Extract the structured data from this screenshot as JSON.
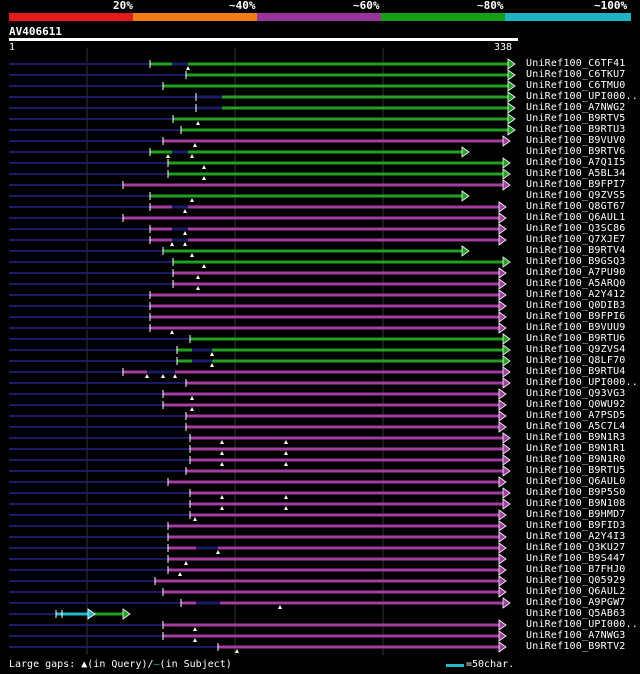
{
  "query": {
    "id": "AV406611",
    "start_label": "1",
    "end_label": "338"
  },
  "scale": {
    "labels": [
      "20%",
      "~40%",
      "~60%",
      "~80%",
      "~100%"
    ],
    "colors": [
      "#e41a1c",
      "#f07d1a",
      "#993399",
      "#169e16",
      "#1eb4c4"
    ]
  },
  "colors": {
    "green": "#22a022",
    "magenta": "#a43ca4",
    "cyan": "#22b8c8",
    "navy": "#1a1a66",
    "grid": "#333333"
  },
  "hits": [
    {
      "label": "UniRef100_C6TF41",
      "color": "green",
      "start": 150,
      "end": 514,
      "marks": [
        188
      ],
      "gap": [
        172,
        188
      ]
    },
    {
      "label": "UniRef100_C6TKU7",
      "color": "green",
      "start": 186,
      "end": 514,
      "marks": [],
      "gap": null
    },
    {
      "label": "UniRef100_C6TMU0",
      "color": "green",
      "start": 163,
      "end": 514,
      "marks": [],
      "gap": null
    },
    {
      "label": "UniRef100_UPI000..",
      "color": "green",
      "start": 196,
      "end": 514,
      "marks": [],
      "gap": [
        196,
        222
      ]
    },
    {
      "label": "UniRef100_A7NWG2",
      "color": "green",
      "start": 196,
      "end": 514,
      "marks": [],
      "gap": [
        196,
        222
      ]
    },
    {
      "label": "UniRef100_B9RTV5",
      "color": "green",
      "start": 173,
      "end": 514,
      "marks": [
        198
      ],
      "gap": null
    },
    {
      "label": "UniRef100_B9RTU3",
      "color": "green",
      "start": 181,
      "end": 514,
      "marks": [],
      "gap": null
    },
    {
      "label": "UniRef100_B9VUV0",
      "color": "magenta",
      "start": 163,
      "end": 509,
      "marks": [
        195
      ],
      "gap": null
    },
    {
      "label": "UniRef100_B9RTV6",
      "color": "green",
      "start": 150,
      "end": 468,
      "marks": [
        168,
        192
      ],
      "gap": [
        172,
        188
      ]
    },
    {
      "label": "UniRef100_A7Q1I5",
      "color": "green",
      "start": 168,
      "end": 509,
      "marks": [
        204
      ],
      "gap": null
    },
    {
      "label": "UniRef100_A5BL34",
      "color": "green",
      "start": 168,
      "end": 509,
      "marks": [
        204
      ],
      "gap": null
    },
    {
      "label": "UniRef100_B9FPI7",
      "color": "magenta",
      "start": 123,
      "end": 509,
      "marks": [],
      "gap": null
    },
    {
      "label": "UniRef100_Q9ZVS5",
      "color": "green",
      "start": 150,
      "end": 468,
      "marks": [
        192
      ],
      "gap": null
    },
    {
      "label": "UniRef100_Q8GT67",
      "color": "magenta",
      "start": 150,
      "end": 505,
      "marks": [
        185
      ],
      "gap": [
        172,
        188
      ]
    },
    {
      "label": "UniRef100_Q6AUL1",
      "color": "magenta",
      "start": 123,
      "end": 505,
      "marks": [],
      "gap": null
    },
    {
      "label": "UniRef100_Q3SC86",
      "color": "magenta",
      "start": 150,
      "end": 505,
      "marks": [
        185
      ],
      "gap": [
        172,
        188
      ]
    },
    {
      "label": "UniRef100_Q7XJE7",
      "color": "magenta",
      "start": 150,
      "end": 505,
      "marks": [
        172,
        185
      ],
      "gap": [
        172,
        188
      ]
    },
    {
      "label": "UniRef100_B9RTV4",
      "color": "green",
      "start": 163,
      "end": 468,
      "marks": [
        192
      ],
      "gap": null
    },
    {
      "label": "UniRef100_B9GSQ3",
      "color": "green",
      "start": 173,
      "end": 509,
      "marks": [
        204
      ],
      "gap": null
    },
    {
      "label": "UniRef100_A7PU90",
      "color": "magenta",
      "start": 173,
      "end": 505,
      "marks": [
        198
      ],
      "gap": null
    },
    {
      "label": "UniRef100_A5ARQ0",
      "color": "magenta",
      "start": 173,
      "end": 505,
      "marks": [
        198
      ],
      "gap": null
    },
    {
      "label": "UniRef100_A2Y412",
      "color": "magenta",
      "start": 150,
      "end": 505,
      "marks": [],
      "gap": null
    },
    {
      "label": "UniRef100_Q0DIB3",
      "color": "magenta",
      "start": 150,
      "end": 505,
      "marks": [],
      "gap": null
    },
    {
      "label": "UniRef100_B9FPI6",
      "color": "magenta",
      "start": 150,
      "end": 505,
      "marks": [],
      "gap": null
    },
    {
      "label": "UniRef100_B9VUU9",
      "color": "magenta",
      "start": 150,
      "end": 505,
      "marks": [
        172
      ],
      "gap": null
    },
    {
      "label": "UniRef100_B9RTU6",
      "color": "green",
      "start": 190,
      "end": 509,
      "marks": [],
      "gap": null
    },
    {
      "label": "UniRef100_Q9ZVS4",
      "color": "green",
      "start": 177,
      "end": 509,
      "marks": [
        212
      ],
      "gap": [
        192,
        212
      ]
    },
    {
      "label": "UniRef100_Q8LF70",
      "color": "green",
      "start": 177,
      "end": 509,
      "marks": [
        212
      ],
      "gap": [
        192,
        212
      ]
    },
    {
      "label": "UniRef100_B9RTU4",
      "color": "magenta",
      "start": 123,
      "end": 509,
      "marks": [
        147,
        163,
        175
      ],
      "gap": [
        147,
        175
      ]
    },
    {
      "label": "UniRef100_UPI000..",
      "color": "magenta",
      "start": 186,
      "end": 509,
      "marks": [],
      "gap": null
    },
    {
      "label": "UniRef100_Q93VG3",
      "color": "magenta",
      "start": 163,
      "end": 505,
      "marks": [
        192
      ],
      "gap": null
    },
    {
      "label": "UniRef100_Q0WU92",
      "color": "magenta",
      "start": 163,
      "end": 505,
      "marks": [
        192
      ],
      "gap": null
    },
    {
      "label": "UniRef100_A7PSD5",
      "color": "magenta",
      "start": 186,
      "end": 505,
      "marks": [],
      "gap": null
    },
    {
      "label": "UniRef100_A5C7L4",
      "color": "magenta",
      "start": 186,
      "end": 505,
      "marks": [],
      "gap": null
    },
    {
      "label": "UniRef100_B9N1R3",
      "color": "magenta",
      "start": 190,
      "end": 509,
      "marks": [
        222,
        286
      ],
      "gap": null
    },
    {
      "label": "UniRef100_B9N1R1",
      "color": "magenta",
      "start": 190,
      "end": 509,
      "marks": [
        222,
        286
      ],
      "gap": null
    },
    {
      "label": "UniRef100_B9N1R0",
      "color": "magenta",
      "start": 190,
      "end": 509,
      "marks": [
        222,
        286
      ],
      "gap": null
    },
    {
      "label": "UniRef100_B9RTU5",
      "color": "magenta",
      "start": 186,
      "end": 509,
      "marks": [],
      "gap": null
    },
    {
      "label": "UniRef100_Q6AUL0",
      "color": "magenta",
      "start": 168,
      "end": 505,
      "marks": [],
      "gap": null
    },
    {
      "label": "UniRef100_B9P5S0",
      "color": "magenta",
      "start": 190,
      "end": 509,
      "marks": [
        222,
        286
      ],
      "gap": null
    },
    {
      "label": "UniRef100_B9N108",
      "color": "magenta",
      "start": 190,
      "end": 509,
      "marks": [
        222,
        286
      ],
      "gap": null
    },
    {
      "label": "UniRef100_B9HMD7",
      "color": "magenta",
      "start": 190,
      "end": 505,
      "marks": [
        195
      ],
      "gap": null
    },
    {
      "label": "UniRef100_B9FID3",
      "color": "magenta",
      "start": 168,
      "end": 505,
      "marks": [],
      "gap": null
    },
    {
      "label": "UniRef100_A2Y4I3",
      "color": "magenta",
      "start": 168,
      "end": 505,
      "marks": [],
      "gap": null
    },
    {
      "label": "UniRef100_Q3KU27",
      "color": "magenta",
      "start": 168,
      "end": 505,
      "marks": [
        218
      ],
      "gap": [
        196,
        218
      ]
    },
    {
      "label": "UniRef100_B9S447",
      "color": "magenta",
      "start": 168,
      "end": 505,
      "marks": [
        186
      ],
      "gap": null
    },
    {
      "label": "UniRef100_B7FHJ0",
      "color": "magenta",
      "start": 168,
      "end": 505,
      "marks": [
        180
      ],
      "gap": null
    },
    {
      "label": "UniRef100_Q05929",
      "color": "magenta",
      "start": 155,
      "end": 505,
      "marks": [],
      "gap": null
    },
    {
      "label": "UniRef100_Q6AUL2",
      "color": "magenta",
      "start": 163,
      "end": 505,
      "marks": [],
      "gap": null
    },
    {
      "label": "UniRef100_A9PGW7",
      "color": "magenta",
      "start": 181,
      "end": 509,
      "marks": [
        280
      ],
      "gap": [
        196,
        220
      ]
    },
    {
      "label": "UniRef100_Q5AB63",
      "color": "mixed",
      "start": 56,
      "end": 129,
      "marks": [],
      "gap": [
        56,
        62
      ]
    },
    {
      "label": "UniRef100_UPI000..",
      "color": "magenta",
      "start": 163,
      "end": 505,
      "marks": [
        195
      ],
      "gap": null
    },
    {
      "label": "UniRef100_A7NWG3",
      "color": "magenta",
      "start": 163,
      "end": 505,
      "marks": [
        195
      ],
      "gap": null
    },
    {
      "label": "UniRef100_B9RTV2",
      "color": "magenta",
      "start": 218,
      "end": 505,
      "marks": [
        237
      ],
      "gap": null
    }
  ],
  "legend": {
    "gaps_text": "Large gaps: ",
    "query_text": "(in Query)/",
    "subject_text": "(in Subject)",
    "scale_text": "=50char."
  }
}
